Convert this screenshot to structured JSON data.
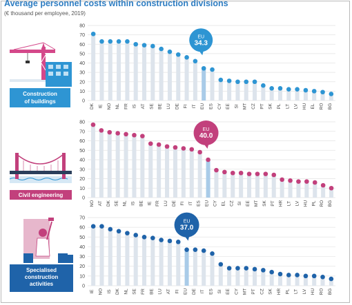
{
  "title": "Average personnel costs within construction divisions",
  "subtitle": "(€ thousand per employee, 2019)",
  "chart_data": [
    {
      "type": "scatter",
      "panel_label": "Construction of buildings",
      "color": "#2e95d3",
      "eu_callout": {
        "label": "EU",
        "value": "34.3"
      },
      "categories": [
        "DK",
        "IE",
        "NO",
        "NL",
        "FR",
        "IS",
        "AT",
        "SE",
        "BE",
        "LU",
        "DE",
        "FI",
        "IT",
        "EU",
        "ES",
        "CY",
        "EE",
        "SI",
        "MT",
        "CZ",
        "PT",
        "SK",
        "PL",
        "LT",
        "LV",
        "HU",
        "EL",
        "RO",
        "BG"
      ],
      "values": [
        71,
        63,
        63,
        63,
        63,
        60,
        59,
        58,
        55,
        52,
        49,
        46,
        42,
        34.3,
        33,
        22,
        21,
        20,
        20,
        20,
        16,
        13,
        13,
        12,
        12,
        11,
        10,
        9,
        7
      ],
      "yticks": [
        0,
        10,
        20,
        30,
        40,
        50,
        60,
        70,
        80
      ],
      "ylim": [
        0,
        80
      ],
      "grid": true
    },
    {
      "type": "scatter",
      "panel_label": "Civil engineering",
      "color": "#c2407c",
      "eu_callout": {
        "label": "EU",
        "value": "40.0"
      },
      "categories": [
        "NO",
        "AT",
        "DK",
        "SE",
        "NL",
        "IS",
        "BE",
        "IE",
        "FR",
        "LU",
        "DE",
        "FI",
        "IT",
        "ES",
        "EU",
        "CY",
        "EL",
        "CZ",
        "SI",
        "EE",
        "MT",
        "SK",
        "PT",
        "HR",
        "LT",
        "LV",
        "HU",
        "PL",
        "RO",
        "BG"
      ],
      "values": [
        77,
        71,
        69,
        68,
        67,
        66,
        65,
        57,
        56,
        54,
        53,
        52,
        51,
        48,
        40,
        29,
        27,
        26,
        26,
        25,
        25,
        25,
        24,
        19,
        18,
        17,
        17,
        16,
        13,
        10
      ],
      "yticks": [
        0,
        10,
        20,
        30,
        40,
        50,
        60,
        70,
        80
      ],
      "ylim": [
        0,
        80
      ],
      "grid": true
    },
    {
      "type": "scatter",
      "panel_label": "Specialised construction activities",
      "color": "#1f63a9",
      "eu_callout": {
        "label": "EU",
        "value": "37.0"
      },
      "categories": [
        "IE",
        "NO",
        "IS",
        "DK",
        "NL",
        "SE",
        "FR",
        "BE",
        "LU",
        "AT",
        "FI",
        "EU",
        "DE",
        "IT",
        "ES",
        "SI",
        "EE",
        "CY",
        "MT",
        "PT",
        "CZ",
        "SK",
        "HR",
        "PL",
        "LT",
        "LV",
        "HU",
        "RO",
        "BG"
      ],
      "values": [
        61,
        61,
        58,
        56,
        54,
        52,
        50,
        49,
        47,
        46,
        45,
        37,
        37,
        36,
        33,
        22,
        18,
        18,
        18,
        17,
        16,
        14,
        12,
        11,
        11,
        10,
        10,
        9,
        7
      ],
      "yticks": [
        0,
        10,
        20,
        30,
        40,
        50,
        60,
        70
      ],
      "ylim": [
        0,
        70
      ],
      "grid": true
    }
  ]
}
